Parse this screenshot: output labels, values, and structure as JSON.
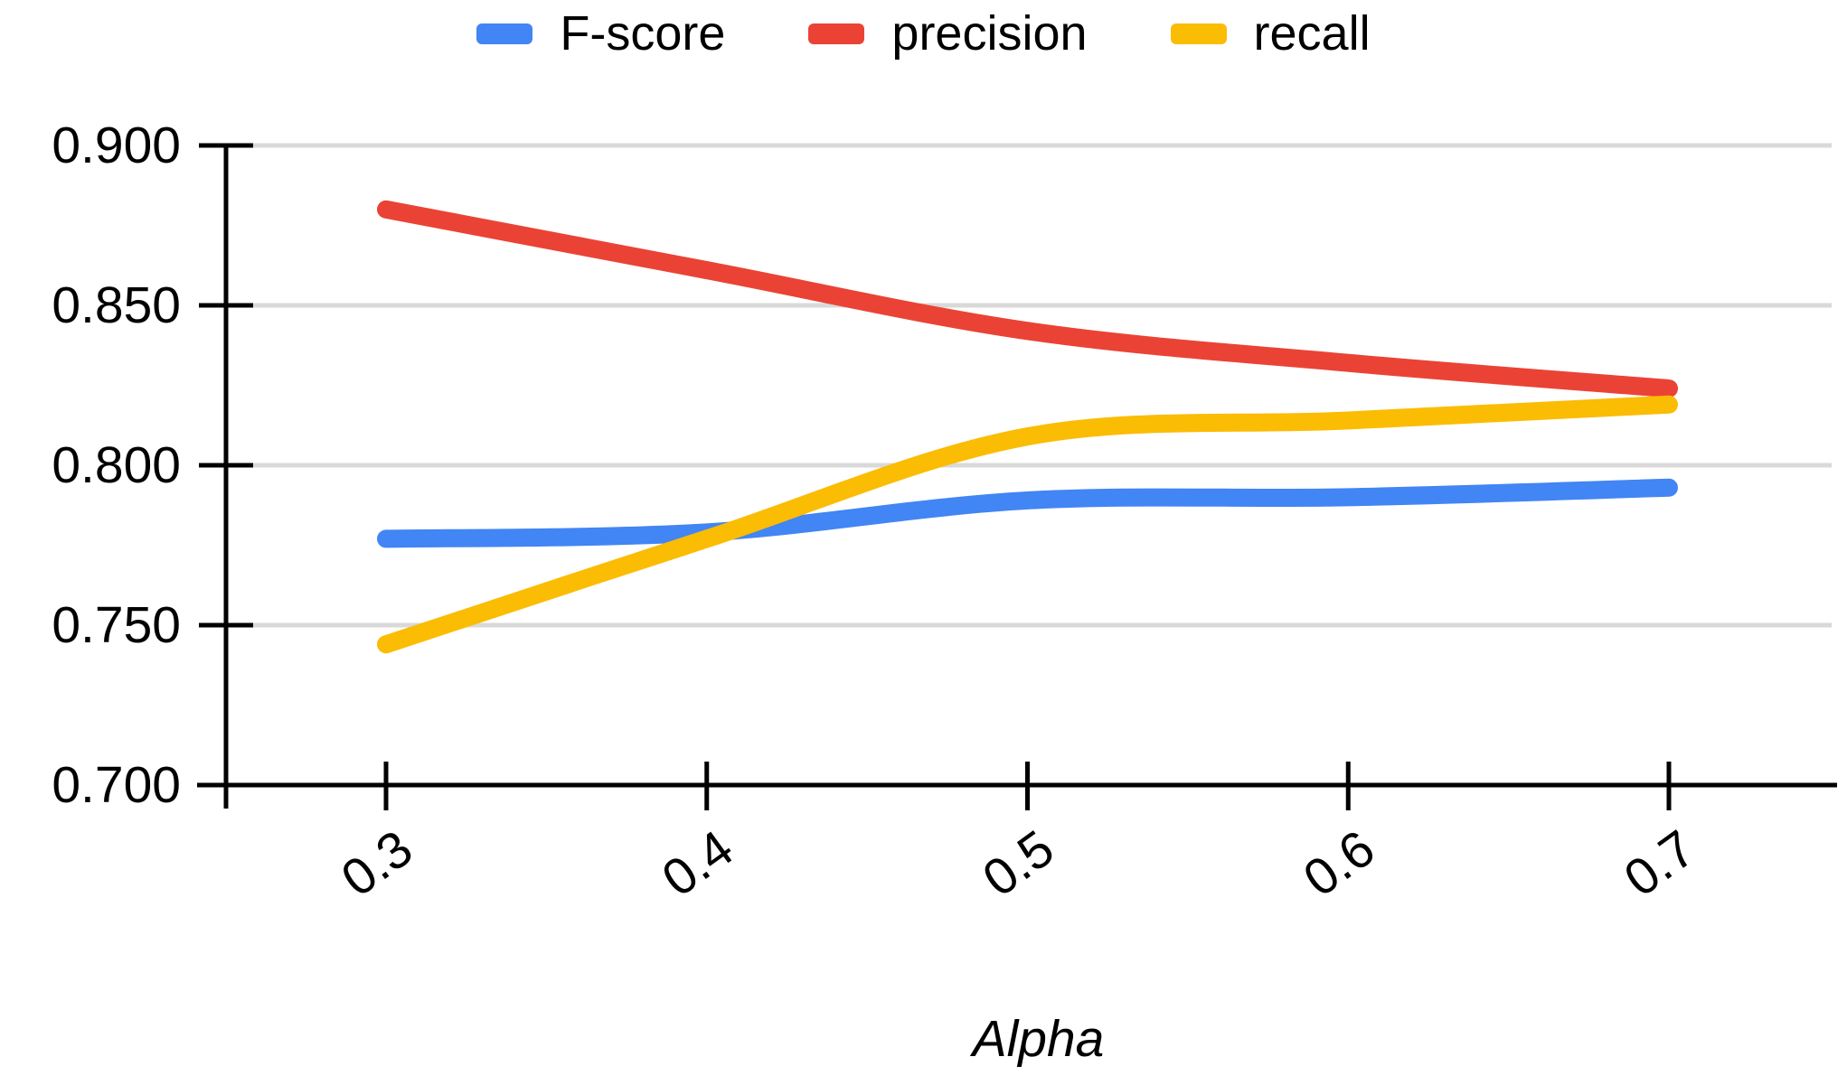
{
  "chart_data": {
    "type": "line",
    "title": "",
    "xlabel": "Alpha",
    "x": [
      0.3,
      0.4,
      0.5,
      0.6,
      0.7
    ],
    "x_tick_labels": [
      "0.3",
      "0.4",
      "0.5",
      "0.6",
      "0.7"
    ],
    "y_ticks": [
      0.7,
      0.75,
      0.8,
      0.85,
      0.9
    ],
    "y_tick_labels": [
      "0.700",
      "0.750",
      "0.800",
      "0.850",
      "0.900"
    ],
    "ylim": [
      0.7,
      0.9
    ],
    "grid": "horizontal",
    "line_style": "smooth",
    "legend_position": "top-center",
    "series": [
      {
        "name": "F-score",
        "color": "#4285F4",
        "values": [
          0.777,
          0.779,
          0.789,
          0.79,
          0.793
        ]
      },
      {
        "name": "precision",
        "color": "#EA4335",
        "values": [
          0.88,
          0.861,
          0.842,
          0.832,
          0.824
        ]
      },
      {
        "name": "recall",
        "color": "#FBBC04",
        "values": [
          0.744,
          0.777,
          0.809,
          0.814,
          0.819
        ]
      }
    ],
    "colors": {
      "gridline": "#D9D9D9",
      "axis": "#000000",
      "text": "#000000",
      "background": "#FFFFFF"
    }
  }
}
